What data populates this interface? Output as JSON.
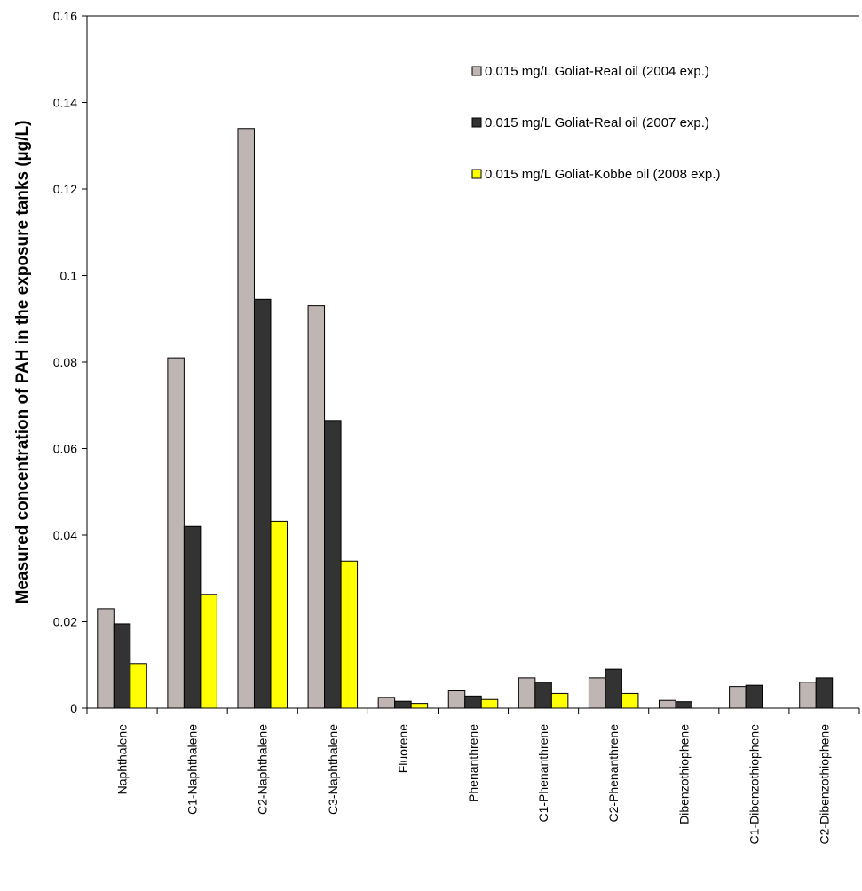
{
  "chart_data": {
    "type": "bar",
    "title": "",
    "xlabel": "",
    "ylabel": "Measured concentration of PAH in the exposure tanks (µg/L)",
    "ylim": [
      0,
      0.16
    ],
    "yticks": [
      "0",
      "0.02",
      "0.04",
      "0.06",
      "0.08",
      "0.1",
      "0.12",
      "0.14",
      "0.16"
    ],
    "yticks_values": [
      0,
      0.02,
      0.04,
      0.06,
      0.08,
      0.1,
      0.12,
      0.14,
      0.16
    ],
    "grid": false,
    "legend_position": "top-right",
    "categories": [
      "Naphthalene",
      "C1-Naphthalene",
      "C2-Naphthalene",
      "C3-Naphthalene",
      "Fluorene",
      "Phenanthrene",
      "C1-Phenanthrene",
      "C2-Phenanthrene",
      "Dibenzothiophene",
      "C1-Dibenzothiophene",
      "C2-Dibenzothiophene"
    ],
    "series": [
      {
        "name": "0.015 mg/L Goliat-Real oil (2004 exp.)",
        "color": "#bfb5b3",
        "values": [
          0.023,
          0.081,
          0.134,
          0.093,
          0.0025,
          0.004,
          0.007,
          0.007,
          0.0018,
          0.005,
          0.006
        ]
      },
      {
        "name": "0.015 mg/L Goliat-Real oil (2007 exp.)",
        "color": "#333333",
        "values": [
          0.0195,
          0.042,
          0.0945,
          0.0665,
          0.0016,
          0.0028,
          0.006,
          0.009,
          0.0015,
          0.0053,
          0.007
        ]
      },
      {
        "name": "0.015 mg/L Goliat-Kobbe oil (2008 exp.)",
        "color": "#ffff00",
        "values": [
          0.0103,
          0.0263,
          0.0432,
          0.034,
          0.0011,
          0.002,
          0.0034,
          0.0034,
          0,
          0,
          0
        ]
      }
    ]
  }
}
